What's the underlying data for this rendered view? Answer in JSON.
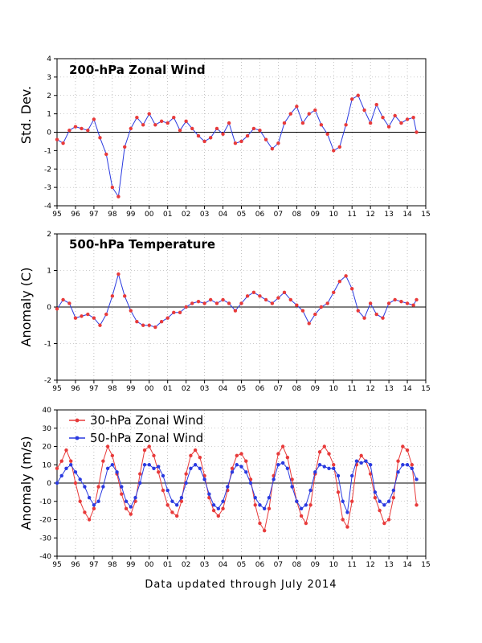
{
  "footer": "Data updated through July 2014",
  "colors": {
    "red": "#e83a3a",
    "blue": "#2a3ae0"
  },
  "chart_data": [
    {
      "type": "scatter",
      "title": "200-hPa Zonal Wind",
      "ylabel": "Std. Dev.",
      "xlim": [
        1995,
        2015
      ],
      "ylim": [
        -4,
        4
      ],
      "yticks": [
        -4,
        -3,
        -2,
        -1,
        0,
        1,
        2,
        3,
        4
      ],
      "xticks": [
        "95",
        "96",
        "97",
        "98",
        "99",
        "00",
        "01",
        "02",
        "03",
        "04",
        "05",
        "06",
        "07",
        "08",
        "09",
        "10",
        "11",
        "12",
        "13",
        "14",
        "15"
      ],
      "grid": true,
      "series": [
        {
          "color": "#e83a3a",
          "line_color": "#2a3ae0",
          "x": [
            1995.0,
            1995.33,
            1995.67,
            1996.0,
            1996.33,
            1996.67,
            1997.0,
            1997.33,
            1997.67,
            1998.0,
            1998.33,
            1998.67,
            1999.0,
            1999.33,
            1999.67,
            2000.0,
            2000.33,
            2000.67,
            2001.0,
            2001.33,
            2001.67,
            2002.0,
            2002.33,
            2002.67,
            2003.0,
            2003.33,
            2003.67,
            2004.0,
            2004.33,
            2004.67,
            2005.0,
            2005.33,
            2005.67,
            2006.0,
            2006.33,
            2006.67,
            2007.0,
            2007.33,
            2007.67,
            2008.0,
            2008.33,
            2008.67,
            2009.0,
            2009.33,
            2009.67,
            2010.0,
            2010.33,
            2010.67,
            2011.0,
            2011.33,
            2011.67,
            2012.0,
            2012.33,
            2012.67,
            2013.0,
            2013.33,
            2013.67,
            2014.0,
            2014.33,
            2014.5
          ],
          "y": [
            -0.4,
            -0.6,
            0.1,
            0.3,
            0.2,
            0.1,
            0.7,
            -0.3,
            -1.2,
            -3.0,
            -3.5,
            -0.8,
            0.2,
            0.8,
            0.4,
            1.0,
            0.4,
            0.6,
            0.5,
            0.8,
            0.1,
            0.6,
            0.2,
            -0.2,
            -0.5,
            -0.3,
            0.2,
            -0.1,
            0.5,
            -0.6,
            -0.5,
            -0.2,
            0.2,
            0.1,
            -0.4,
            -0.9,
            -0.6,
            0.5,
            1.0,
            1.4,
            0.5,
            1.0,
            1.2,
            0.4,
            -0.1,
            -1.0,
            -0.8,
            0.4,
            1.8,
            2.0,
            1.2,
            0.5,
            1.5,
            0.8,
            0.3,
            0.9,
            0.5,
            0.7,
            0.8,
            0.0
          ]
        }
      ]
    },
    {
      "type": "scatter",
      "title": "500-hPa Temperature",
      "ylabel": "Anomaly (C)",
      "xlim": [
        1995,
        2015
      ],
      "ylim": [
        -2,
        2
      ],
      "yticks": [
        -2,
        -1,
        0,
        1,
        2
      ],
      "xticks": [
        "95",
        "96",
        "97",
        "98",
        "99",
        "00",
        "01",
        "02",
        "03",
        "04",
        "05",
        "06",
        "07",
        "08",
        "09",
        "10",
        "11",
        "12",
        "13",
        "14",
        "15"
      ],
      "grid": true,
      "series": [
        {
          "color": "#e83a3a",
          "line_color": "#2a3ae0",
          "x": [
            1995.0,
            1995.33,
            1995.67,
            1996.0,
            1996.33,
            1996.67,
            1997.0,
            1997.33,
            1997.67,
            1998.0,
            1998.33,
            1998.67,
            1999.0,
            1999.33,
            1999.67,
            2000.0,
            2000.33,
            2000.67,
            2001.0,
            2001.33,
            2001.67,
            2002.0,
            2002.33,
            2002.67,
            2003.0,
            2003.33,
            2003.67,
            2004.0,
            2004.33,
            2004.67,
            2005.0,
            2005.33,
            2005.67,
            2006.0,
            2006.33,
            2006.67,
            2007.0,
            2007.33,
            2007.67,
            2008.0,
            2008.33,
            2008.67,
            2009.0,
            2009.33,
            2009.67,
            2010.0,
            2010.33,
            2010.67,
            2011.0,
            2011.33,
            2011.67,
            2012.0,
            2012.33,
            2012.67,
            2013.0,
            2013.33,
            2013.67,
            2014.0,
            2014.33,
            2014.5
          ],
          "y": [
            -0.05,
            0.2,
            0.1,
            -0.3,
            -0.25,
            -0.2,
            -0.3,
            -0.5,
            -0.2,
            0.3,
            0.9,
            0.3,
            -0.1,
            -0.4,
            -0.5,
            -0.5,
            -0.55,
            -0.4,
            -0.3,
            -0.15,
            -0.15,
            0.0,
            0.1,
            0.15,
            0.1,
            0.2,
            0.1,
            0.2,
            0.1,
            -0.1,
            0.1,
            0.3,
            0.4,
            0.3,
            0.2,
            0.1,
            0.25,
            0.4,
            0.2,
            0.05,
            -0.1,
            -0.45,
            -0.2,
            0.0,
            0.1,
            0.4,
            0.7,
            0.85,
            0.5,
            -0.1,
            -0.3,
            0.1,
            -0.2,
            -0.3,
            0.1,
            0.2,
            0.15,
            0.1,
            0.05,
            0.2
          ]
        }
      ]
    },
    {
      "type": "line",
      "title": "",
      "ylabel": "Anomaly (m/s)",
      "xlim": [
        1995,
        2015
      ],
      "ylim": [
        -40,
        40
      ],
      "yticks": [
        -40,
        -30,
        -20,
        -10,
        0,
        10,
        20,
        30,
        40
      ],
      "xticks": [
        "95",
        "96",
        "97",
        "98",
        "99",
        "00",
        "01",
        "02",
        "03",
        "04",
        "05",
        "06",
        "07",
        "08",
        "09",
        "10",
        "11",
        "12",
        "13",
        "14",
        "15"
      ],
      "grid": true,
      "legend": "top-left",
      "series": [
        {
          "name": "30-hPa Zonal Wind",
          "color": "#e83a3a",
          "x": [
            1995.0,
            1995.25,
            1995.5,
            1995.75,
            1996.0,
            1996.25,
            1996.5,
            1996.75,
            1997.0,
            1997.25,
            1997.5,
            1997.75,
            1998.0,
            1998.25,
            1998.5,
            1998.75,
            1999.0,
            1999.25,
            1999.5,
            1999.75,
            2000.0,
            2000.25,
            2000.5,
            2000.75,
            2001.0,
            2001.25,
            2001.5,
            2001.75,
            2002.0,
            2002.25,
            2002.5,
            2002.75,
            2003.0,
            2003.25,
            2003.5,
            2003.75,
            2004.0,
            2004.25,
            2004.5,
            2004.75,
            2005.0,
            2005.25,
            2005.5,
            2005.75,
            2006.0,
            2006.25,
            2006.5,
            2006.75,
            2007.0,
            2007.25,
            2007.5,
            2007.75,
            2008.0,
            2008.25,
            2008.5,
            2008.75,
            2009.0,
            2009.25,
            2009.5,
            2009.75,
            2010.0,
            2010.25,
            2010.5,
            2010.75,
            2011.0,
            2011.25,
            2011.5,
            2011.75,
            2012.0,
            2012.25,
            2012.5,
            2012.75,
            2013.0,
            2013.25,
            2013.5,
            2013.75,
            2014.0,
            2014.25,
            2014.5
          ],
          "y": [
            8,
            12,
            18,
            12,
            0,
            -10,
            -16,
            -20,
            -14,
            -2,
            12,
            20,
            15,
            5,
            -6,
            -14,
            -17,
            -10,
            5,
            18,
            20,
            15,
            6,
            -4,
            -12,
            -16,
            -18,
            -10,
            5,
            15,
            18,
            14,
            4,
            -8,
            -15,
            -18,
            -14,
            -4,
            8,
            15,
            16,
            12,
            2,
            -12,
            -22,
            -26,
            -14,
            4,
            16,
            20,
            14,
            2,
            -10,
            -18,
            -22,
            -12,
            5,
            17,
            20,
            16,
            10,
            -5,
            -20,
            -24,
            -10,
            10,
            15,
            12,
            5,
            -8,
            -15,
            -22,
            -20,
            -8,
            12,
            20,
            18,
            10,
            -12
          ]
        },
        {
          "name": "50-hPa Zonal Wind",
          "color": "#2a3ae0",
          "x": [
            1995.0,
            1995.25,
            1995.5,
            1995.75,
            1996.0,
            1996.25,
            1996.5,
            1996.75,
            1997.0,
            1997.25,
            1997.5,
            1997.75,
            1998.0,
            1998.25,
            1998.5,
            1998.75,
            1999.0,
            1999.25,
            1999.5,
            1999.75,
            2000.0,
            2000.25,
            2000.5,
            2000.75,
            2001.0,
            2001.25,
            2001.5,
            2001.75,
            2002.0,
            2002.25,
            2002.5,
            2002.75,
            2003.0,
            2003.25,
            2003.5,
            2003.75,
            2004.0,
            2004.25,
            2004.5,
            2004.75,
            2005.0,
            2005.25,
            2005.5,
            2005.75,
            2006.0,
            2006.25,
            2006.5,
            2006.75,
            2007.0,
            2007.25,
            2007.5,
            2007.75,
            2008.0,
            2008.25,
            2008.5,
            2008.75,
            2009.0,
            2009.25,
            2009.5,
            2009.75,
            2010.0,
            2010.25,
            2010.5,
            2010.75,
            2011.0,
            2011.25,
            2011.5,
            2011.75,
            2012.0,
            2012.25,
            2012.5,
            2012.75,
            2013.0,
            2013.25,
            2013.5,
            2013.75,
            2014.0,
            2014.25,
            2014.5
          ],
          "y": [
            0,
            4,
            8,
            10,
            6,
            2,
            -2,
            -8,
            -12,
            -10,
            -2,
            8,
            10,
            6,
            -2,
            -10,
            -13,
            -8,
            0,
            10,
            10,
            8,
            9,
            4,
            -4,
            -10,
            -12,
            -8,
            0,
            8,
            10,
            8,
            2,
            -6,
            -12,
            -14,
            -10,
            -2,
            6,
            10,
            9,
            6,
            0,
            -8,
            -12,
            -14,
            -8,
            2,
            10,
            11,
            8,
            -2,
            -10,
            -14,
            -12,
            -4,
            6,
            10,
            9,
            8,
            8,
            4,
            -10,
            -16,
            4,
            12,
            11,
            12,
            10,
            -5,
            -10,
            -12,
            -10,
            -4,
            6,
            10,
            10,
            8,
            2
          ]
        }
      ]
    }
  ]
}
